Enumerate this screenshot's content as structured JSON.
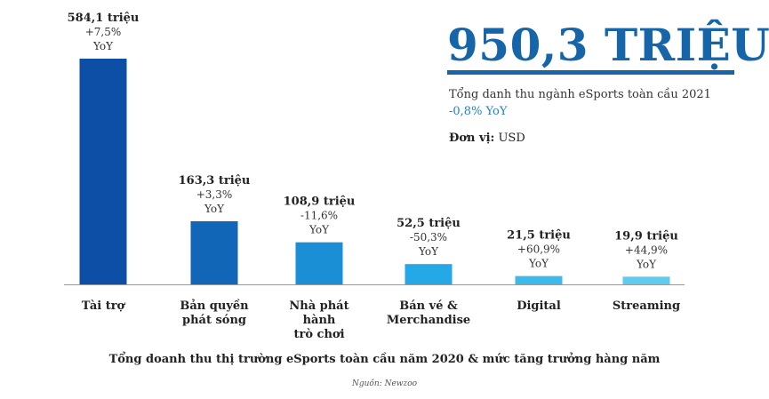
{
  "headline": {
    "total": "950,3 TRIỆU",
    "description": "Tổng danh thu ngành eSports toàn cầu 2021",
    "change": "-0,8% YoY",
    "unit_label": "Đơn vị:",
    "unit_value": "USD"
  },
  "colors": {
    "accent": "#1565a8",
    "change_text": "#1f7fd0",
    "axis": "#999999"
  },
  "chart_data": {
    "type": "bar",
    "title": "Tổng doanh thu thị trường eSports toàn cầu năm 2020 & mức tăng trưởng hàng năm",
    "source": "Nguồn: Newzoo",
    "unit": "triệu USD",
    "xlabel": "",
    "ylabel": "",
    "ylim": [
      0,
      584.1
    ],
    "grid": false,
    "legend": "none",
    "categories": [
      [
        "Tài trợ"
      ],
      [
        "Bản quyền",
        "phát sóng"
      ],
      [
        "Nhà phát",
        "hành",
        "trò chơi"
      ],
      [
        "Bán vé &",
        "Merchandise"
      ],
      [
        "Digital"
      ],
      [
        "Streaming"
      ]
    ],
    "values": [
      584.1,
      163.3,
      108.9,
      52.5,
      21.5,
      19.9
    ],
    "value_labels": [
      "584,1 triệu",
      "163,3 triệu",
      "108,9 triệu",
      "52,5 triệu",
      "21,5 triệu",
      "19,9 triệu"
    ],
    "change_labels": [
      "+7,5%",
      "+3,3%",
      "-11,6%",
      "-50,3%",
      "+60,9%",
      "+44,9%"
    ],
    "change_suffix": "YoY",
    "bar_colors": [
      "#0d4ea6",
      "#1266b8",
      "#1a8fd6",
      "#25a8e6",
      "#3cbbeb",
      "#5fcbee"
    ]
  }
}
